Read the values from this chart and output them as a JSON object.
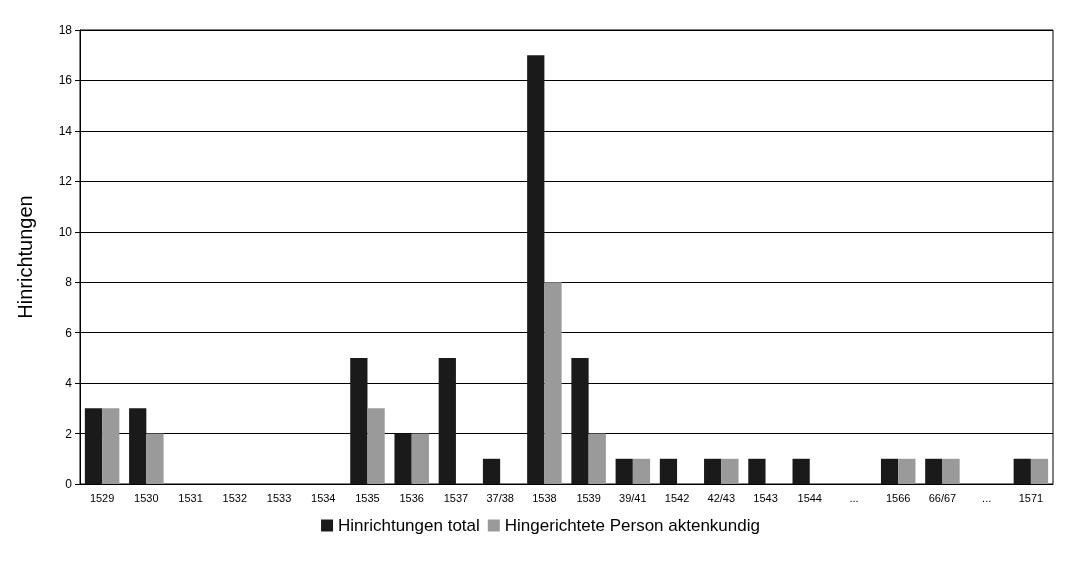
{
  "chart_data": {
    "type": "bar",
    "ylabel": "Hinrichtungen",
    "categories": [
      "1529",
      "1530",
      "1531",
      "1532",
      "1533",
      "1534",
      "1535",
      "1536",
      "1537",
      "37/38",
      "1538",
      "1539",
      "39/41",
      "1542",
      "42/43",
      "1543",
      "1544",
      "...",
      "1566",
      "66/67",
      "...",
      "1571"
    ],
    "series": [
      {
        "name": "Hinrichtungen total",
        "color": "#1a1a1a",
        "values": [
          3,
          3,
          0,
          0,
          0,
          0,
          5,
          2,
          5,
          1,
          17,
          5,
          1,
          1,
          1,
          1,
          1,
          null,
          1,
          1,
          null,
          1
        ]
      },
      {
        "name": "Hingerichtete Person aktenkundig",
        "color": "#9a9a9a",
        "values": [
          3,
          2,
          0,
          0,
          0,
          0,
          3,
          2,
          0,
          0,
          8,
          2,
          1,
          0,
          1,
          0,
          0,
          null,
          1,
          1,
          null,
          1
        ]
      }
    ],
    "ylim": [
      0,
      18
    ],
    "yticks": [
      0,
      2,
      4,
      6,
      8,
      10,
      12,
      14,
      16,
      18
    ],
    "grid": "y",
    "legend": "bottom"
  }
}
